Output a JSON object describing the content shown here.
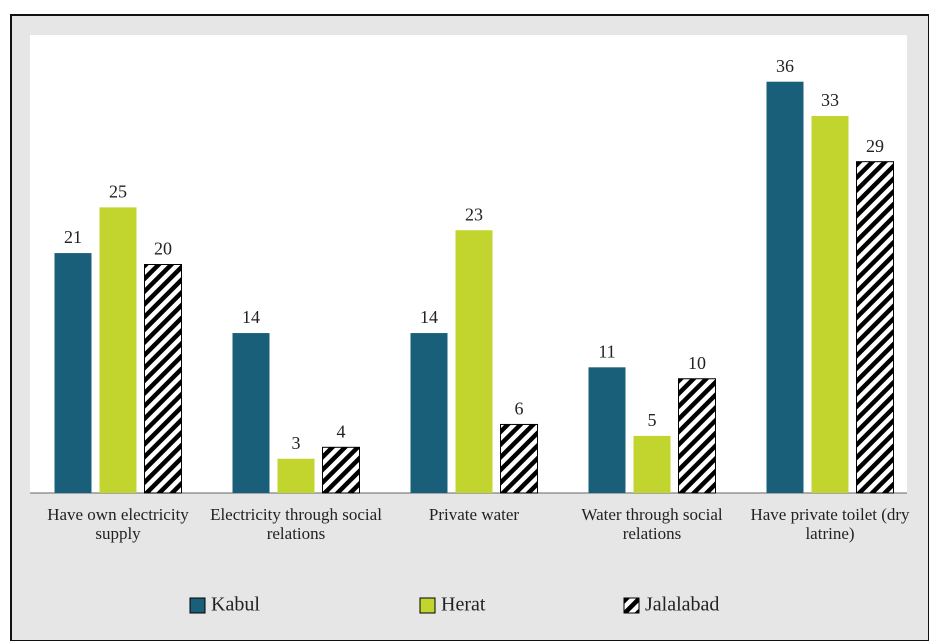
{
  "chart_data": {
    "type": "bar",
    "categories": [
      "Have own electricity supply",
      "Electricity through social relations",
      "Private water",
      "Water through social relations",
      "Have private toilet (dry latrine)"
    ],
    "series": [
      {
        "name": "Kabul",
        "color": "#1a5f79",
        "values": [
          21,
          14,
          14,
          11,
          36
        ]
      },
      {
        "name": "Herat",
        "color": "#c2d42e",
        "values": [
          25,
          3,
          23,
          5,
          33
        ]
      },
      {
        "name": "Jalalabad",
        "color": "#000000",
        "hatch": true,
        "values": [
          20,
          4,
          6,
          10,
          29
        ]
      }
    ],
    "ylim": [
      0,
      40
    ],
    "legend": "bottom"
  }
}
